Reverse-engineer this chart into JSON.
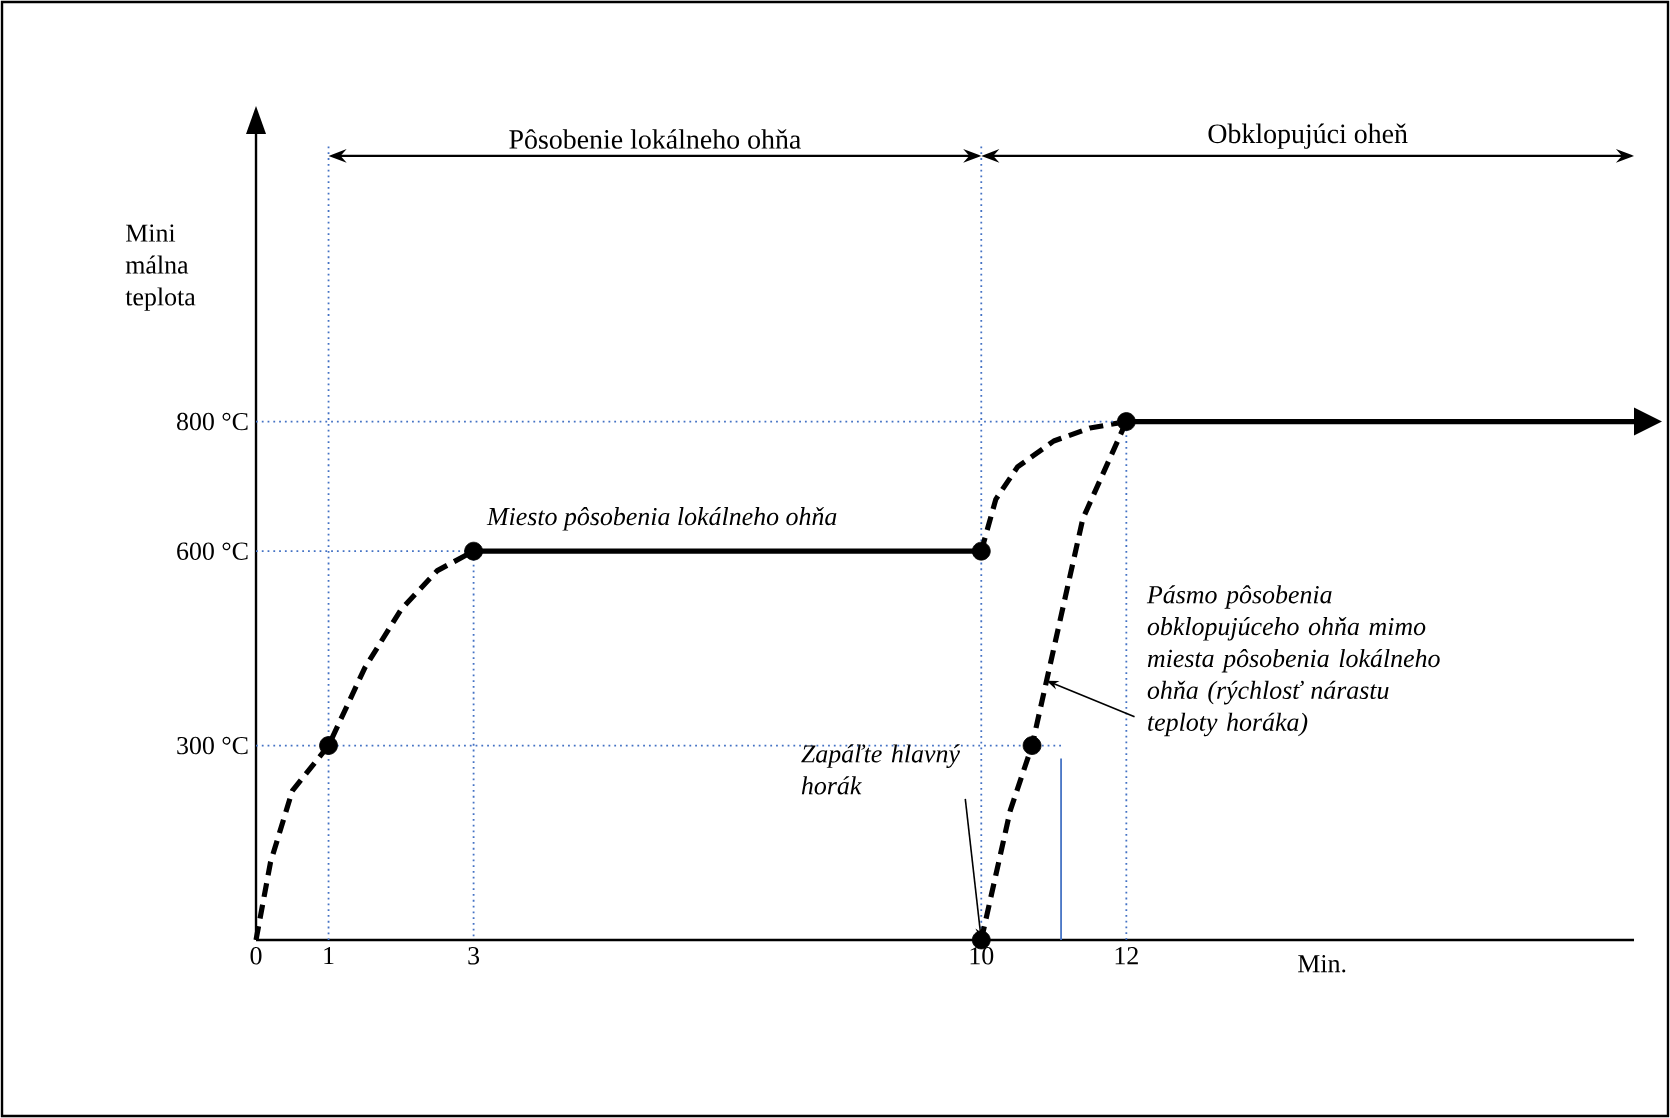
{
  "chart_data": {
    "type": "line",
    "xlabel": "Min.",
    "ylabel": "Mini málna teplota",
    "xlim": [
      0,
      19
    ],
    "ylim": [
      0,
      1250
    ],
    "xticks": [
      0,
      1,
      3,
      10,
      12
    ],
    "yticks": [
      {
        "value": 300,
        "label": "300 °C"
      },
      {
        "value": 600,
        "label": "600 °C"
      },
      {
        "value": 800,
        "label": "800 °C"
      }
    ],
    "series": [
      {
        "type": "line",
        "color": "#000000",
        "line_style": "dashed",
        "x": [
          0,
          0.2,
          0.5,
          1,
          1.5,
          2,
          2.5,
          3
        ],
        "values": [
          0,
          120,
          230,
          300,
          420,
          510,
          570,
          600
        ]
      },
      {
        "type": "line",
        "color": "#000000",
        "line_style": "solid",
        "x": [
          3,
          10
        ],
        "values": [
          600,
          600
        ]
      },
      {
        "type": "line",
        "color": "#000000",
        "line_style": "dashed",
        "x": [
          10,
          10.2,
          10.5,
          11,
          11.5,
          12
        ],
        "values": [
          600,
          680,
          730,
          770,
          790,
          800
        ]
      },
      {
        "type": "line",
        "color": "#000000",
        "line_style": "dashed",
        "x": [
          10,
          10.2,
          10.4,
          10.7,
          11,
          11.4,
          12
        ],
        "values": [
          0,
          100,
          200,
          300,
          450,
          650,
          800
        ]
      },
      {
        "type": "line",
        "color": "#000000",
        "line_style": "solid",
        "x": [
          12,
          19
        ],
        "values": [
          800,
          800
        ]
      },
      {
        "type": "line",
        "color": "#4472c4",
        "line_style": "solid",
        "x": [
          11.1,
          11.1
        ],
        "values": [
          280,
          0
        ]
      },
      {
        "type": "line",
        "color": "#4472c4",
        "line_style": "dotted",
        "x": [
          0,
          12,
          12
        ],
        "values": [
          800,
          800,
          0
        ]
      },
      {
        "type": "line",
        "color": "#4472c4",
        "line_style": "dotted",
        "x": [
          0,
          3,
          3
        ],
        "values": [
          600,
          600,
          0
        ]
      },
      {
        "type": "line",
        "color": "#4472c4",
        "line_style": "dotted",
        "x": [
          0,
          11.1
        ],
        "values": [
          300,
          300
        ]
      },
      {
        "type": "scatter",
        "color": "#000000",
        "x": [
          1,
          3,
          10,
          10,
          10.7,
          12
        ],
        "values": [
          300,
          600,
          600,
          0,
          300,
          800
        ]
      }
    ],
    "ref_lines": [
      {
        "axis": "x",
        "value": 1,
        "color": "#4472c4",
        "line_style": "dotted"
      },
      {
        "axis": "x",
        "value": 10,
        "color": "#4472c4",
        "line_style": "dotted"
      }
    ],
    "annotations": [
      "Pôsobenie lokálneho ohňa",
      "Obklopujúci oheň",
      {
        "text": "Miesto pôsobenia lokálneho ohňa",
        "x": 5.6,
        "y": 600
      },
      {
        "text": "Pásmo pôsobenia obklopujúceho ohňa mimo miesta pôsobenia lokálneho ohňa (rýchlosť nárastu teploty horáka)",
        "x": 10.9,
        "y": 400
      },
      {
        "text": "Zapáľte hlavný horák",
        "x": 10,
        "y": 0
      }
    ]
  }
}
